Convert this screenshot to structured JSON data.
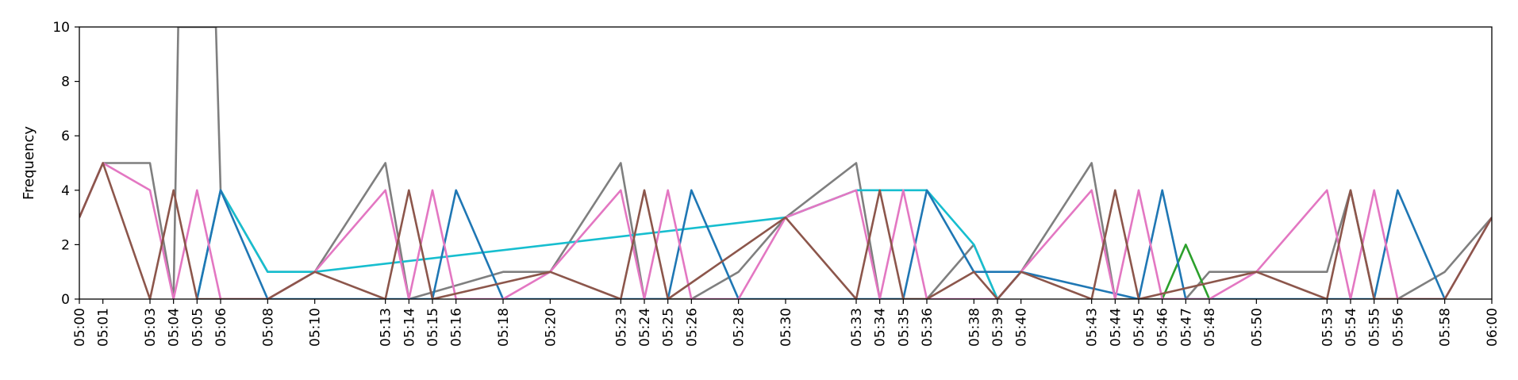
{
  "chart_data": {
    "type": "line",
    "title": "",
    "xlabel": "",
    "ylabel": "Frequency",
    "ylim": [
      0,
      10
    ],
    "xlim": [
      "05:00",
      "06:00"
    ],
    "yticks": [
      0,
      2,
      4,
      6,
      8,
      10
    ],
    "xticks": [
      "05:00",
      "05:01",
      "05:03",
      "05:04",
      "05:05",
      "05:06",
      "05:08",
      "05:10",
      "05:13",
      "05:14",
      "05:15",
      "05:16",
      "05:18",
      "05:20",
      "05:23",
      "05:24",
      "05:25",
      "05:26",
      "05:28",
      "05:30",
      "05:33",
      "05:34",
      "05:35",
      "05:36",
      "05:38",
      "05:39",
      "05:40",
      "05:43",
      "05:44",
      "05:45",
      "05:46",
      "05:47",
      "05:48",
      "05:50",
      "05:53",
      "05:54",
      "05:55",
      "05:56",
      "05:58",
      "06:00"
    ],
    "grid": false,
    "series": [
      {
        "color": "#7f7f7f",
        "points": [
          [
            "05:00",
            3
          ],
          [
            "05:01",
            5
          ],
          [
            "05:03",
            5
          ],
          [
            "05:04",
            0
          ],
          [
            "05:04.2",
            10
          ],
          [
            "05:05.8",
            10
          ],
          [
            "05:06",
            4
          ],
          [
            "05:08",
            1
          ],
          [
            "05:10",
            1
          ],
          [
            "05:13",
            5
          ],
          [
            "05:14",
            0
          ],
          [
            "05:18",
            1
          ],
          [
            "05:20",
            1
          ],
          [
            "05:23",
            5
          ],
          [
            "05:24",
            0
          ],
          [
            "05:26",
            0
          ],
          [
            "05:28",
            1
          ],
          [
            "05:30",
            3
          ],
          [
            "05:33",
            5
          ],
          [
            "05:34",
            0
          ],
          [
            "05:36",
            0
          ],
          [
            "05:38",
            2
          ],
          [
            "05:39",
            0
          ],
          [
            "05:40",
            1
          ],
          [
            "05:43",
            5
          ],
          [
            "05:44",
            0
          ],
          [
            "05:47",
            0
          ],
          [
            "05:48",
            1
          ],
          [
            "05:50",
            1
          ],
          [
            "05:53",
            1
          ],
          [
            "05:54",
            4
          ],
          [
            "05:55",
            0
          ],
          [
            "05:56",
            0
          ],
          [
            "05:58",
            1
          ],
          [
            "06:00",
            3
          ]
        ]
      },
      {
        "color": "#17becf",
        "points": [
          [
            "05:05",
            0
          ],
          [
            "05:06",
            4
          ],
          [
            "05:08",
            1
          ],
          [
            "05:10",
            1
          ],
          [
            "05:30",
            3
          ],
          [
            "05:33",
            4
          ],
          [
            "05:36",
            4
          ],
          [
            "05:38",
            2
          ],
          [
            "05:39",
            0
          ],
          [
            "05:40",
            1
          ]
        ]
      },
      {
        "color": "#2ca02c",
        "points": [
          [
            "05:46",
            0
          ],
          [
            "05:47",
            2
          ],
          [
            "05:48",
            0
          ]
        ]
      },
      {
        "color": "#1f77b4",
        "points": [
          [
            "05:05",
            0
          ],
          [
            "05:06",
            4
          ],
          [
            "05:08",
            0
          ],
          [
            "05:15",
            0
          ],
          [
            "05:16",
            4
          ],
          [
            "05:18",
            0
          ],
          [
            "05:25",
            0
          ],
          [
            "05:26",
            4
          ],
          [
            "05:28",
            0
          ],
          [
            "05:35",
            0
          ],
          [
            "05:36",
            4
          ],
          [
            "05:38",
            1
          ],
          [
            "05:40",
            1
          ],
          [
            "05:45",
            0
          ],
          [
            "05:46",
            4
          ],
          [
            "05:47",
            0
          ],
          [
            "05:55",
            0
          ],
          [
            "05:56",
            4
          ],
          [
            "05:58",
            0
          ]
        ]
      },
      {
        "color": "#e377c2",
        "points": [
          [
            "05:00",
            3
          ],
          [
            "05:01",
            5
          ],
          [
            "05:03",
            4
          ],
          [
            "05:04",
            0
          ],
          [
            "05:05",
            4
          ],
          [
            "05:06",
            0
          ],
          [
            "05:08",
            0
          ],
          [
            "05:10",
            1
          ],
          [
            "05:13",
            4
          ],
          [
            "05:14",
            0
          ],
          [
            "05:15",
            4
          ],
          [
            "05:16",
            0
          ],
          [
            "05:18",
            0
          ],
          [
            "05:20",
            1
          ],
          [
            "05:23",
            4
          ],
          [
            "05:24",
            0
          ],
          [
            "05:25",
            4
          ],
          [
            "05:26",
            0
          ],
          [
            "05:28",
            0
          ],
          [
            "05:30",
            3
          ],
          [
            "05:33",
            4
          ],
          [
            "05:34",
            0
          ],
          [
            "05:35",
            4
          ],
          [
            "05:36",
            0
          ],
          [
            "05:39",
            0
          ],
          [
            "05:40",
            1
          ],
          [
            "05:43",
            4
          ],
          [
            "05:44",
            0
          ],
          [
            "05:45",
            4
          ],
          [
            "05:46",
            0
          ],
          [
            "05:48",
            0
          ],
          [
            "05:50",
            1
          ],
          [
            "05:53",
            4
          ],
          [
            "05:54",
            0
          ],
          [
            "05:55",
            4
          ],
          [
            "05:56",
            0
          ],
          [
            "05:58",
            0
          ],
          [
            "06:00",
            3
          ]
        ]
      },
      {
        "color": "#8c564b",
        "points": [
          [
            "05:00",
            3
          ],
          [
            "05:01",
            5
          ],
          [
            "05:03",
            0
          ],
          [
            "05:04",
            4
          ],
          [
            "05:05",
            0
          ],
          [
            "05:08",
            0
          ],
          [
            "05:10",
            1
          ],
          [
            "05:13",
            0
          ],
          [
            "05:14",
            4
          ],
          [
            "05:15",
            0
          ],
          [
            "05:20",
            1
          ],
          [
            "05:23",
            0
          ],
          [
            "05:24",
            4
          ],
          [
            "05:25",
            0
          ],
          [
            "05:30",
            3
          ],
          [
            "05:33",
            0
          ],
          [
            "05:34",
            4
          ],
          [
            "05:35",
            0
          ],
          [
            "05:36",
            0
          ],
          [
            "05:38",
            1
          ],
          [
            "05:39",
            0
          ],
          [
            "05:40",
            1
          ],
          [
            "05:43",
            0
          ],
          [
            "05:44",
            4
          ],
          [
            "05:45",
            0
          ],
          [
            "05:50",
            1
          ],
          [
            "05:53",
            0
          ],
          [
            "05:54",
            4
          ],
          [
            "05:55",
            0
          ],
          [
            "05:58",
            0
          ],
          [
            "06:00",
            3
          ]
        ]
      }
    ]
  }
}
